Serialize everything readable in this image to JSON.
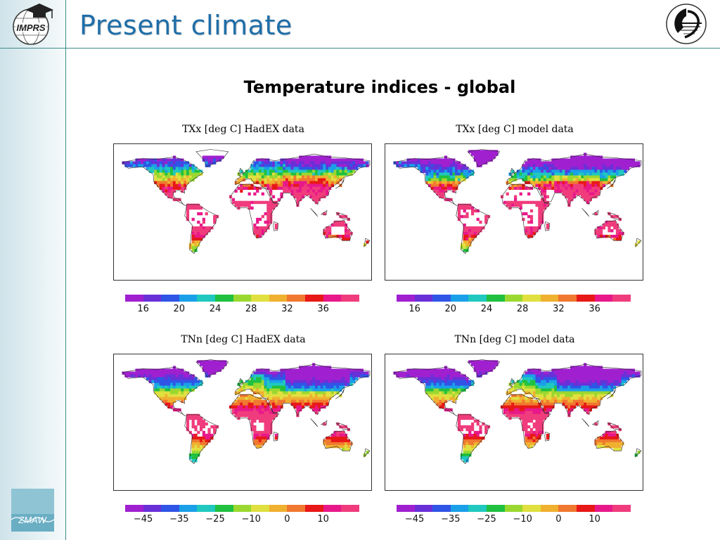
{
  "slide": {
    "title": "Present climate",
    "subtitle": "Temperature indices - global"
  },
  "logos": {
    "imprs": "IMPRS",
    "zmaw": "ZMAW"
  },
  "panels": [
    {
      "title": "TXx [deg C] HadEX data",
      "variable": "TXx",
      "tick_labels": [
        "16",
        "20",
        "24",
        "28",
        "32",
        "36"
      ]
    },
    {
      "title": "TXx [deg C] model data",
      "variable": "TXx",
      "tick_labels": [
        "16",
        "20",
        "24",
        "28",
        "32",
        "36"
      ]
    },
    {
      "title": "TNn [deg C] HadEX data",
      "variable": "TNn",
      "tick_labels": [
        "−45",
        "−35",
        "−25",
        "−10",
        "0",
        "10"
      ]
    },
    {
      "title": "TNn [deg C] model data",
      "variable": "TNn",
      "tick_labels": [
        "−45",
        "−35",
        "−25",
        "−10",
        "0",
        "10"
      ]
    }
  ],
  "colorbar_colors": [
    "#a020d0",
    "#6a30d8",
    "#2f55e6",
    "#1aa0e8",
    "#20c8c0",
    "#20c040",
    "#9ad830",
    "#e0e040",
    "#f0b030",
    "#f07830",
    "#e81818",
    "#e8188a",
    "#f03c7c"
  ],
  "colors": {
    "title": "#1f6ea8",
    "rule": "#3c8a8a"
  }
}
